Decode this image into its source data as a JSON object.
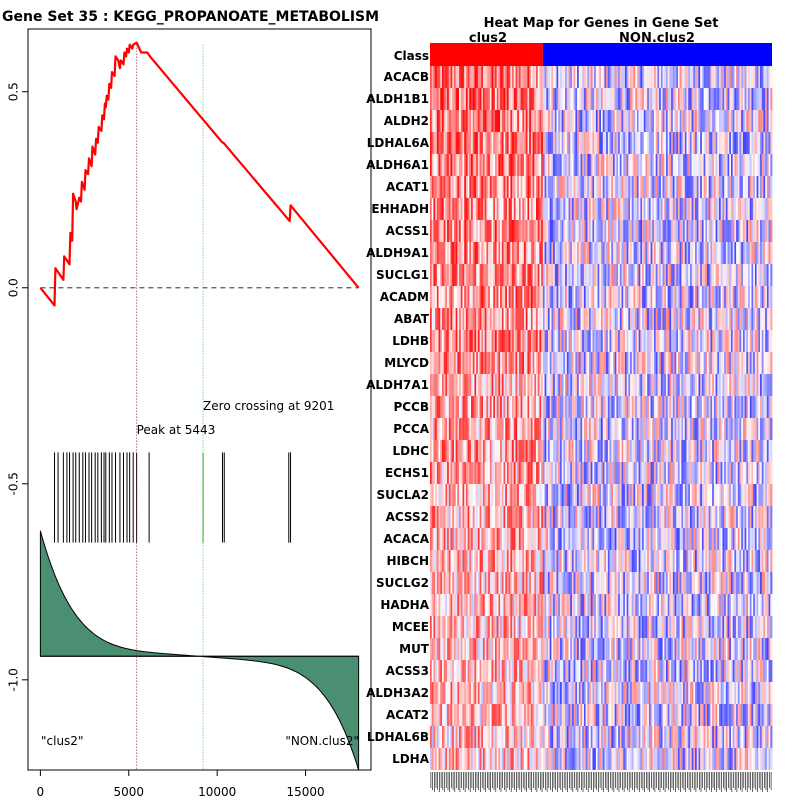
{
  "chart_data": [
    {
      "type": "line",
      "title": "Gene Set  35 : KEGG_PROPANOATE_METABOLISM",
      "xlim": [
        -700,
        18700
      ],
      "ylim": [
        -1.23,
        0.66
      ],
      "x_ticks": [
        0,
        5000,
        10000,
        15000
      ],
      "x_tick_labels": [
        "0",
        "5000",
        "10000",
        "15000"
      ],
      "y_ticks": [
        0.5,
        0.0,
        -0.5,
        -1.0
      ],
      "y_tick_labels": [
        "0.5",
        "0.0",
        "-0.5",
        "-1.0"
      ],
      "running_es": {
        "name": "Enrichment score",
        "color": "#ff0000",
        "x": [
          0,
          800,
          850,
          1300,
          1350,
          1650,
          1700,
          1800,
          1850,
          2000,
          2050,
          2200,
          2300,
          2350,
          2500,
          2550,
          2700,
          2750,
          2900,
          2950,
          3100,
          3150,
          3250,
          3300,
          3450,
          3500,
          3600,
          3650,
          3700,
          3750,
          3850,
          3900,
          4000,
          4050,
          4200,
          4250,
          4400,
          4500,
          4550,
          4700,
          4750,
          4850,
          4900,
          5000,
          5050,
          5200,
          5250,
          5443,
          5700,
          5800,
          6050,
          6200,
          10300,
          10350,
          14100,
          14150,
          18000
        ],
        "y": [
          0.0,
          -0.045,
          0.05,
          0.02,
          0.08,
          0.06,
          0.14,
          0.12,
          0.24,
          0.22,
          0.2,
          0.23,
          0.22,
          0.27,
          0.25,
          0.3,
          0.29,
          0.33,
          0.31,
          0.36,
          0.34,
          0.38,
          0.37,
          0.41,
          0.4,
          0.44,
          0.43,
          0.47,
          0.46,
          0.49,
          0.48,
          0.52,
          0.51,
          0.55,
          0.54,
          0.59,
          0.58,
          0.56,
          0.58,
          0.57,
          0.6,
          0.59,
          0.61,
          0.6,
          0.62,
          0.61,
          0.62,
          0.625,
          0.6,
          0.6,
          0.6,
          0.59,
          0.37,
          0.37,
          0.17,
          0.21,
          0.0
        ]
      },
      "zero_line": 0.0,
      "hits": [
        800,
        1000,
        1300,
        1500,
        1650,
        1850,
        2000,
        2200,
        2400,
        2550,
        2750,
        2900,
        3100,
        3250,
        3450,
        3600,
        3700,
        3900,
        4050,
        4250,
        4500,
        4700,
        4900,
        5050,
        5250,
        5443,
        6150,
        9201,
        10300,
        10400,
        14050,
        14150
      ],
      "hits_y_range": [
        -0.42,
        -0.65
      ],
      "ranked_metric": {
        "baseline": -0.94,
        "start": -0.65,
        "end": -1.2,
        "color": "#4b8f72"
      },
      "peak": {
        "x": 5443,
        "label": "Peak at 5443",
        "color": "#aa2222"
      },
      "zero_crossing": {
        "x": 9201,
        "label": "Zero crossing at 9201",
        "color": "#33cc33"
      },
      "group_labels": [
        "\"clus2\"",
        "\"NON.clus2\""
      ]
    },
    {
      "type": "heatmap",
      "title": "Heat Map for Genes in Gene Set",
      "class_label": "Class",
      "classes": [
        {
          "name": "clus2",
          "color": "#ff0000",
          "fraction": 0.33
        },
        {
          "name": "NON.clus2",
          "color": "#0000ff",
          "fraction": 0.67
        }
      ],
      "genes": [
        "ACACB",
        "ALDH1B1",
        "ALDH2",
        "LDHAL6A",
        "ALDH6A1",
        "ACAT1",
        "EHHADH",
        "ACSS1",
        "ALDH9A1",
        "SUCLG1",
        "ACADM",
        "ABAT",
        "LDHB",
        "MLYCD",
        "ALDH7A1",
        "PCCB",
        "PCCA",
        "LDHC",
        "ECHS1",
        "SUCLA2",
        "ACSS2",
        "ACACA",
        "HIBCH",
        "SUCLG2",
        "HADHA",
        "MCEE",
        "MUT",
        "ACSS3",
        "ALDH3A2",
        "ACAT2",
        "LDHAL6B",
        "LDHA"
      ],
      "n_samples": 200,
      "high_color": "#ff0000",
      "low_color": "#0000ff"
    }
  ]
}
